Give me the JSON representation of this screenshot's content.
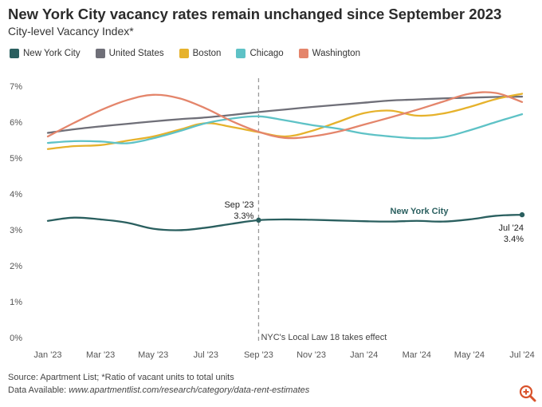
{
  "colors": {
    "new_york_city": "#2a5f5f",
    "united_states": "#6f6f78",
    "boston": "#e6b22c",
    "chicago": "#5ec2c6",
    "washington": "#e4856b",
    "axis_text": "#555555",
    "annotation_line": "#999999",
    "zoom_icon": "#d9532c"
  },
  "icons": {
    "zoom": "zoom-in-icon"
  },
  "header": {
    "title": "New York City vacancy rates remain unchanged since September 2023",
    "subtitle": "City-level Vacancy Index*"
  },
  "legend": [
    {
      "label": "New York City",
      "color": "#2a5f5f"
    },
    {
      "label": "United States",
      "color": "#6f6f78"
    },
    {
      "label": "Boston",
      "color": "#e6b22c"
    },
    {
      "label": "Chicago",
      "color": "#5ec2c6"
    },
    {
      "label": "Washington",
      "color": "#e4856b"
    }
  ],
  "footer": {
    "source": "Source: Apartment List; *Ratio of vacant units to total units",
    "data_prefix": "Data Available: ",
    "data_link": "www.apartmentlist.com/research/category/data-rent-estimates"
  },
  "chart_data": {
    "type": "line",
    "title": "New York City vacancy rates remain unchanged since September 2023",
    "subtitle": "City-level Vacancy Index*",
    "xlabel": "",
    "ylabel": "",
    "ylim": [
      0,
      7
    ],
    "grid": false,
    "legend_position": "top",
    "x": [
      "Jan '23",
      "Feb '23",
      "Mar '23",
      "Apr '23",
      "May '23",
      "Jun '23",
      "Jul '23",
      "Aug '23",
      "Sep '23",
      "Oct '23",
      "Nov '23",
      "Dec '23",
      "Jan '24",
      "Feb '24",
      "Mar '24",
      "Apr '24",
      "May '24",
      "Jun '24",
      "Jul '24"
    ],
    "x_tick_labels": [
      "Jan '23",
      "Mar '23",
      "May '23",
      "Jul '23",
      "Sep '23",
      "Nov '23",
      "Jan '24",
      "Mar '24",
      "May '24",
      "Jul '24"
    ],
    "x_tick_indices": [
      0,
      2,
      4,
      6,
      8,
      10,
      12,
      14,
      16,
      18
    ],
    "y_ticks": [
      0,
      1,
      2,
      3,
      4,
      5,
      6,
      7
    ],
    "y_tick_labels": [
      "0%",
      "1%",
      "2%",
      "3%",
      "4%",
      "5%",
      "6%",
      "7%"
    ],
    "series": [
      {
        "name": "New York City",
        "values": [
          3.25,
          3.34,
          3.29,
          3.2,
          3.03,
          2.99,
          3.06,
          3.17,
          3.27,
          3.29,
          3.28,
          3.26,
          3.24,
          3.23,
          3.25,
          3.23,
          3.29,
          3.39,
          3.42
        ]
      },
      {
        "name": "United States",
        "values": [
          5.7,
          5.8,
          5.88,
          5.95,
          6.02,
          6.08,
          6.13,
          6.2,
          6.28,
          6.35,
          6.42,
          6.48,
          6.54,
          6.6,
          6.63,
          6.66,
          6.68,
          6.7,
          6.71
        ]
      },
      {
        "name": "Boston",
        "values": [
          5.25,
          5.33,
          5.36,
          5.48,
          5.6,
          5.79,
          5.97,
          5.86,
          5.72,
          5.6,
          5.75,
          6.0,
          6.25,
          6.32,
          6.18,
          6.24,
          6.42,
          6.64,
          6.79
        ]
      },
      {
        "name": "Chicago",
        "values": [
          5.42,
          5.47,
          5.46,
          5.41,
          5.55,
          5.75,
          5.97,
          6.1,
          6.16,
          6.05,
          5.92,
          5.82,
          5.68,
          5.6,
          5.55,
          5.58,
          5.77,
          6.0,
          6.22
        ]
      },
      {
        "name": "Washington",
        "values": [
          5.6,
          5.98,
          6.33,
          6.61,
          6.76,
          6.66,
          6.38,
          6.02,
          5.73,
          5.56,
          5.6,
          5.73,
          5.93,
          6.13,
          6.34,
          6.57,
          6.79,
          6.81,
          6.56
        ]
      }
    ],
    "annotations": {
      "vline_label": "NYC's Local Law 18 takes effect",
      "point_start_date": "Sep '23",
      "point_start_value": "3.3%",
      "point_end_date": "Jul '24",
      "point_end_value": "3.4%",
      "series_label": "New York City"
    }
  }
}
